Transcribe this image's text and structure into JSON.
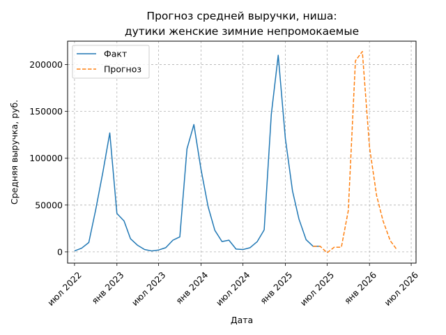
{
  "chart_data": {
    "type": "line",
    "title_lines": [
      "Прогноз средней выручки, ниша:",
      "дутики женские зимние непромокаемые"
    ],
    "xlabel": "Дата",
    "ylabel": "Средняя выручка, руб.",
    "grid": true,
    "legend_placement": "top-left",
    "xlim": [
      "2022-06-01",
      "2026-07-22"
    ],
    "ylim": [
      -12000,
      225000
    ],
    "x_ticks": [
      {
        "date": "2022-07-01",
        "label": "июл 2022"
      },
      {
        "date": "2023-01-01",
        "label": "янв 2023"
      },
      {
        "date": "2023-07-01",
        "label": "июл 2023"
      },
      {
        "date": "2024-01-01",
        "label": "янв 2024"
      },
      {
        "date": "2024-07-01",
        "label": "июл 2024"
      },
      {
        "date": "2025-01-01",
        "label": "янв 2025"
      },
      {
        "date": "2025-07-01",
        "label": "июл 2025"
      },
      {
        "date": "2026-01-01",
        "label": "янв 2026"
      },
      {
        "date": "2026-07-01",
        "label": "июл 2026"
      }
    ],
    "y_ticks": [
      0,
      50000,
      100000,
      150000,
      200000
    ],
    "series": [
      {
        "name": "Факт",
        "color": "#1f77b4",
        "style": "solid",
        "points": [
          [
            "2022-07-01",
            1000
          ],
          [
            "2022-08-01",
            4000
          ],
          [
            "2022-09-01",
            10000
          ],
          [
            "2022-10-01",
            45000
          ],
          [
            "2022-11-01",
            85000
          ],
          [
            "2022-12-01",
            127000
          ],
          [
            "2023-01-01",
            41000
          ],
          [
            "2023-02-01",
            33000
          ],
          [
            "2023-03-01",
            14000
          ],
          [
            "2023-04-01",
            7000
          ],
          [
            "2023-05-01",
            2500
          ],
          [
            "2023-06-01",
            1000
          ],
          [
            "2023-07-01",
            2000
          ],
          [
            "2023-08-01",
            4500
          ],
          [
            "2023-09-01",
            12500
          ],
          [
            "2023-10-01",
            16000
          ],
          [
            "2023-11-01",
            110000
          ],
          [
            "2023-12-01",
            136000
          ],
          [
            "2024-01-01",
            88000
          ],
          [
            "2024-02-01",
            48000
          ],
          [
            "2024-03-01",
            23000
          ],
          [
            "2024-04-01",
            11000
          ],
          [
            "2024-05-01",
            12500
          ],
          [
            "2024-06-01",
            3000
          ],
          [
            "2024-07-01",
            2500
          ],
          [
            "2024-08-01",
            4500
          ],
          [
            "2024-09-01",
            11000
          ],
          [
            "2024-10-01",
            23500
          ],
          [
            "2024-11-01",
            147000
          ],
          [
            "2024-12-01",
            210000
          ],
          [
            "2025-01-01",
            121000
          ],
          [
            "2025-02-01",
            65000
          ],
          [
            "2025-03-01",
            35000
          ],
          [
            "2025-04-01",
            13000
          ],
          [
            "2025-05-01",
            6000
          ],
          [
            "2025-06-01",
            6000
          ]
        ]
      },
      {
        "name": "Прогноз",
        "color": "#ff7f0e",
        "style": "dashed",
        "points": [
          [
            "2025-05-01",
            6000
          ],
          [
            "2025-06-01",
            6000
          ],
          [
            "2025-07-01",
            -1000
          ],
          [
            "2025-08-01",
            5000
          ],
          [
            "2025-09-01",
            5000
          ],
          [
            "2025-10-01",
            44000
          ],
          [
            "2025-11-01",
            204000
          ],
          [
            "2025-12-01",
            214000
          ],
          [
            "2026-01-01",
            112000
          ],
          [
            "2026-02-01",
            60000
          ],
          [
            "2026-03-01",
            33000
          ],
          [
            "2026-04-01",
            12000
          ],
          [
            "2026-05-01",
            2000
          ]
        ]
      }
    ]
  }
}
